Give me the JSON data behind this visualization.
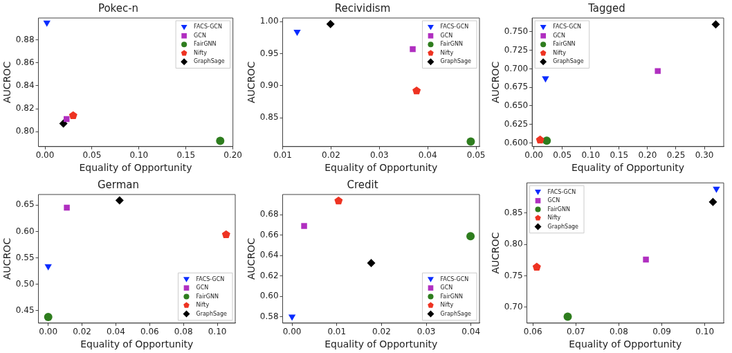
{
  "chart_data": [
    {
      "type": "scatter",
      "title": "Pokec-n",
      "xlabel": "Equality of Opportunity",
      "ylabel": "AUCROC",
      "legend": "top right",
      "grid": false,
      "xlim": [
        -0.007,
        0.2
      ],
      "xticks": [
        {
          "value": 0,
          "label": "0.00"
        },
        0.05,
        {
          "value": 0.1,
          "label": "0.10"
        },
        0.15,
        {
          "value": 0.2,
          "label": "0.20"
        }
      ],
      "ylim": [
        0.787,
        0.899
      ],
      "yticks": [
        {
          "value": 0.8,
          "label": "0.80"
        },
        0.82,
        0.84,
        0.86,
        0.88
      ],
      "series": [
        {
          "name": "FACS-GCN",
          "color": "#0a2cff",
          "marker": "triangle-down",
          "x": [
            0.002
          ],
          "values": [
            0.895
          ]
        },
        {
          "name": "GCN",
          "color": "#b02fc0",
          "marker": "square",
          "x": [
            0.023
          ],
          "values": [
            0.811
          ]
        },
        {
          "name": "FairGNN",
          "color": "#2e7d1e",
          "marker": "circle",
          "x": [
            0.1865
          ],
          "values": [
            0.792
          ]
        },
        {
          "name": "Nifty",
          "color": "#ee3322",
          "x": [
            0.03
          ],
          "values": [
            0.814
          ]
        },
        {
          "name": "GraphSage",
          "color": "#000000",
          "marker": "diamond",
          "x": [
            0.0196
          ],
          "values": [
            0.807
          ]
        }
      ]
    },
    {
      "type": "scatter",
      "title": "Recividism",
      "xlabel": "Equality of Opportunity",
      "ylabel": "AUCROC",
      "legend": "top right",
      "grid": false,
      "xlim": [
        0.01,
        0.0507
      ],
      "xticks": [
        0.01,
        0.02,
        0.03,
        0.04,
        0.05
      ],
      "ylim": [
        0.805,
        1.0055
      ],
      "yticks": [
        0.85,
        {
          "value": 0.9,
          "label": "0.90"
        },
        0.95,
        {
          "value": 1,
          "label": "1.00"
        }
      ],
      "series": [
        {
          "name": "FACS-GCN",
          "color": "#0a2cff",
          "marker": "triangle-down",
          "x": [
            0.013
          ],
          "values": [
            0.984
          ]
        },
        {
          "name": "GCN",
          "color": "#b02fc0",
          "marker": "square",
          "x": [
            0.0369
          ],
          "values": [
            0.957
          ]
        },
        {
          "name": "FairGNN",
          "color": "#2e7d1e",
          "marker": "circle",
          "x": [
            0.0489
          ],
          "values": [
            0.813
          ]
        },
        {
          "name": "Nifty",
          "color": "#ee3322",
          "x": [
            0.0377
          ],
          "values": [
            0.892
          ]
        },
        {
          "name": "GraphSage",
          "color": "#000000",
          "marker": "diamond",
          "x": [
            0.0199
          ],
          "values": [
            0.996
          ]
        }
      ]
    },
    {
      "type": "scatter",
      "title": "Tagged",
      "xlabel": "Equality of Opportunity",
      "ylabel": "AUCROC",
      "legend": "top left",
      "grid": false,
      "xlim": [
        -0.003,
        0.334
      ],
      "xticks": [
        {
          "value": 0,
          "label": "0.00"
        },
        0.05,
        {
          "value": 0.1,
          "label": "0.10"
        },
        0.15,
        {
          "value": 0.2,
          "label": "0.20"
        },
        0.25,
        {
          "value": 0.3,
          "label": "0.30"
        }
      ],
      "ylim": [
        0.595,
        0.7686
      ],
      "yticks": [
        {
          "value": 0.6,
          "label": "0.600"
        },
        0.625,
        {
          "value": 0.65,
          "label": "0.650"
        },
        0.675,
        {
          "value": 0.7,
          "label": "0.700"
        },
        0.725,
        {
          "value": 0.75,
          "label": "0.750"
        }
      ],
      "series": [
        {
          "name": "FACS-GCN",
          "color": "#0a2cff",
          "marker": "triangle-down",
          "x": [
            0.0205
          ],
          "values": [
            0.687
          ]
        },
        {
          "name": "GCN",
          "color": "#b02fc0",
          "marker": "square",
          "x": [
            0.218
          ],
          "values": [
            0.697
          ]
        },
        {
          "name": "FairGNN",
          "color": "#2e7d1e",
          "marker": "circle",
          "x": [
            0.0226
          ],
          "values": [
            0.603
          ]
        },
        {
          "name": "Nifty",
          "color": "#ee3322",
          "x": [
            0.011
          ],
          "values": [
            0.604
          ]
        },
        {
          "name": "GraphSage",
          "color": "#000000",
          "marker": "diamond",
          "x": [
            0.32
          ],
          "values": [
            0.76
          ]
        }
      ]
    },
    {
      "type": "scatter",
      "title": "German",
      "xlabel": "Equality of Opportunity",
      "ylabel": "AUCROC",
      "legend": "bottom right",
      "grid": false,
      "xlim": [
        -0.0058,
        0.1106
      ],
      "xticks": [
        {
          "value": 0,
          "label": "0.00"
        },
        0.02,
        0.04,
        0.06,
        0.08,
        {
          "value": 0.1,
          "label": "0.10"
        }
      ],
      "ylim": [
        0.4265,
        0.67
      ],
      "yticks": [
        0.45,
        {
          "value": 0.5,
          "label": "0.50"
        },
        0.55,
        {
          "value": 0.6,
          "label": "0.60"
        },
        0.65
      ],
      "series": [
        {
          "name": "FACS-GCN",
          "color": "#0a2cff",
          "marker": "triangle-down",
          "x": [
            0
          ],
          "values": [
            0.534
          ]
        },
        {
          "name": "GCN",
          "color": "#b02fc0",
          "marker": "square",
          "x": [
            0.011
          ],
          "values": [
            0.645
          ]
        },
        {
          "name": "FairGNN",
          "color": "#2e7d1e",
          "marker": "circle",
          "x": [
            0
          ],
          "values": [
            0.438
          ]
        },
        {
          "name": "Nifty",
          "color": "#ee3322",
          "x": [
            0.1052
          ],
          "values": [
            0.594
          ]
        },
        {
          "name": "GraphSage",
          "color": "#000000",
          "marker": "diamond",
          "x": [
            0.0422
          ],
          "values": [
            0.659
          ]
        }
      ]
    },
    {
      "type": "scatter",
      "title": "Credit",
      "xlabel": "Equality of Opportunity",
      "ylabel": "AUCROC",
      "legend": "bottom right",
      "grid": false,
      "xlim": [
        -0.0021,
        0.0419
      ],
      "xticks": [
        {
          "value": 0,
          "label": "0.00"
        },
        0.01,
        0.02,
        0.03,
        0.04
      ],
      "ylim": [
        0.5737,
        0.6999
      ],
      "yticks": [
        0.58,
        {
          "value": 0.6,
          "label": "0.60"
        },
        0.62,
        0.64,
        0.66,
        0.68
      ],
      "series": [
        {
          "name": "FACS-GCN",
          "color": "#0a2cff",
          "marker": "triangle-down",
          "x": [
            0
          ],
          "values": [
            0.58
          ]
        },
        {
          "name": "GCN",
          "color": "#b02fc0",
          "marker": "square",
          "x": [
            0.0027
          ],
          "values": [
            0.669
          ]
        },
        {
          "name": "FairGNN",
          "color": "#2e7d1e",
          "marker": "circle",
          "x": [
            0.0399
          ],
          "values": [
            0.659
          ]
        },
        {
          "name": "Nifty",
          "color": "#ee3322",
          "x": [
            0.0104
          ],
          "values": [
            0.6936
          ]
        },
        {
          "name": "GraphSage",
          "color": "#000000",
          "marker": "diamond",
          "x": [
            0.0177
          ],
          "values": [
            0.6327
          ]
        }
      ]
    },
    {
      "type": "scatter",
      "xlabel": "Equality of Opportunity",
      "ylabel": "AUCROC",
      "legend": "top left",
      "grid": false,
      "xlim": [
        0.0586,
        0.1044
      ],
      "xticks": [
        0.06,
        0.07,
        0.08,
        0.09,
        {
          "value": 0.1,
          "label": "0.10"
        }
      ],
      "ylim": [
        0.6747,
        0.8983
      ],
      "yticks": [
        {
          "value": 0.7,
          "label": "0.70"
        },
        0.75,
        {
          "value": 0.8,
          "label": "0.80"
        },
        0.85
      ],
      "series": [
        {
          "name": "FACS-GCN",
          "color": "#0a2cff",
          "marker": "triangle-down",
          "x": [
            0.1027
          ],
          "values": [
            0.889
          ]
        },
        {
          "name": "GCN",
          "color": "#b02fc0",
          "marker": "square",
          "x": [
            0.0863
          ],
          "values": [
            0.776
          ]
        },
        {
          "name": "FairGNN",
          "color": "#2e7d1e",
          "marker": "circle",
          "x": [
            0.0681
          ],
          "values": [
            0.685
          ]
        },
        {
          "name": "Nifty",
          "color": "#ee3322",
          "x": [
            0.0609
          ],
          "values": [
            0.764
          ]
        },
        {
          "name": "GraphSage",
          "color": "#000000",
          "marker": "diamond",
          "x": [
            0.1019
          ],
          "values": [
            0.868
          ]
        }
      ]
    }
  ]
}
